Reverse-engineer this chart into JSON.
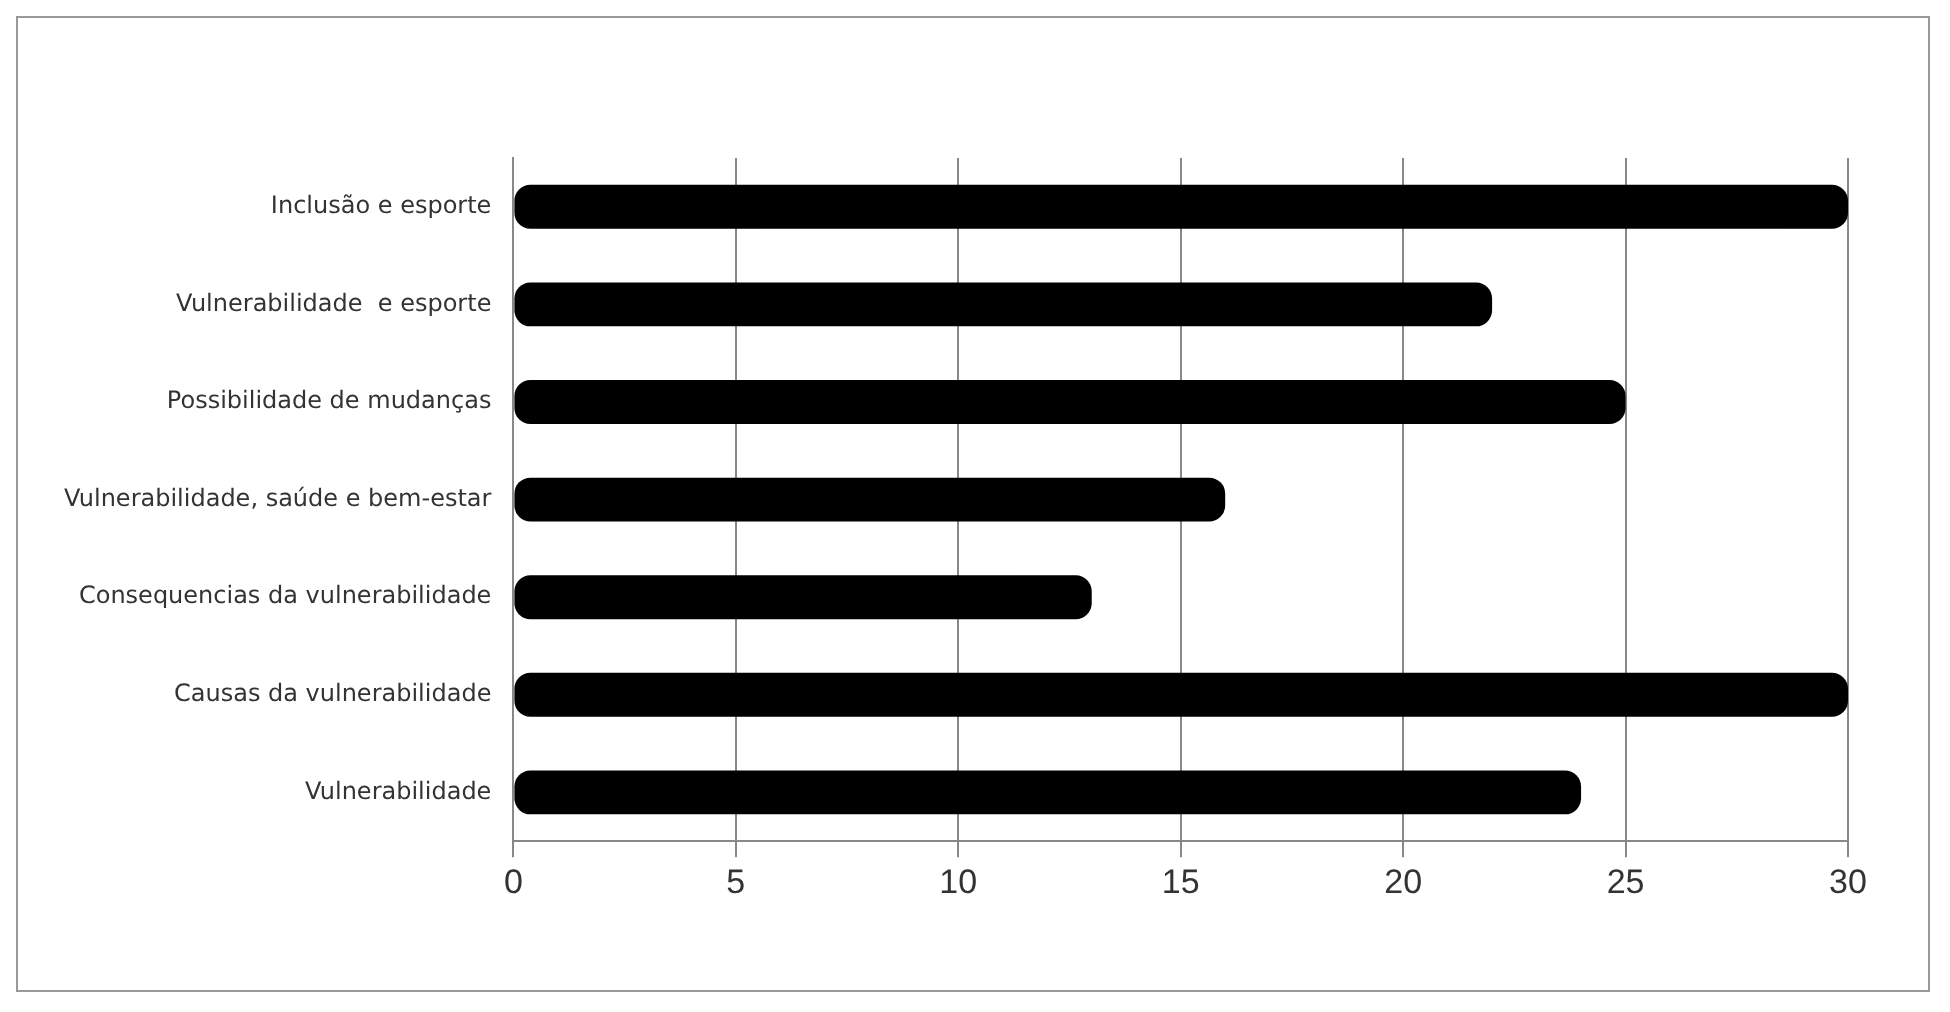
{
  "chart_data": {
    "type": "bar",
    "orientation": "horizontal",
    "categories": [
      "Inclusão e esporte",
      "Vulnerabilidade  e esporte",
      "Possibilidade de mudanças",
      "Vulnerabilidade, saúde e bem-estar",
      "Consequencias da vulnerabilidade",
      "Causas da vulnerabilidade",
      "Vulnerabilidade"
    ],
    "values": [
      30,
      22,
      25,
      16,
      13,
      30,
      24
    ],
    "color": "#000000",
    "xlim": [
      0,
      30
    ],
    "xticks": [
      0,
      5,
      10,
      15,
      20,
      25,
      30
    ],
    "grid": "x"
  }
}
